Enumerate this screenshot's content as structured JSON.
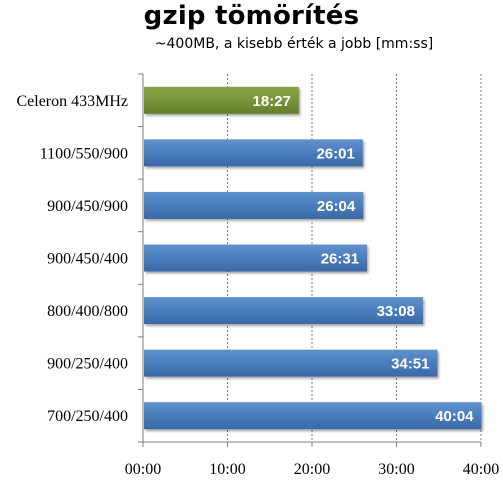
{
  "chart_data": {
    "type": "bar",
    "orientation": "horizontal",
    "title": "gzip tömörítés",
    "subtitle": "~400MB, a kisebb érték a jobb [mm:ss]",
    "categories": [
      "Celeron 433MHz",
      "1100/550/900",
      "900/450/900",
      "900/450/400",
      "800/400/800",
      "900/250/400",
      "700/250/400"
    ],
    "values_seconds": [
      1107,
      1561,
      1564,
      1591,
      1988,
      2091,
      2404
    ],
    "data_labels": [
      "18:27",
      "26:01",
      "26:04",
      "26:31",
      "33:08",
      "34:51",
      "40:04"
    ],
    "bar_colors": [
      "#77933c",
      "#4f81bd",
      "#4f81bd",
      "#4f81bd",
      "#4f81bd",
      "#4f81bd",
      "#4f81bd"
    ],
    "xlim_seconds": [
      0,
      2400
    ],
    "x_ticks_seconds": [
      0,
      600,
      1200,
      1800,
      2400
    ],
    "x_tick_labels": [
      "00:00",
      "10:00",
      "20:00",
      "30:00",
      "40:00"
    ],
    "grid": "vertical dashed",
    "legend": "none",
    "xlabel": "",
    "ylabel": ""
  }
}
